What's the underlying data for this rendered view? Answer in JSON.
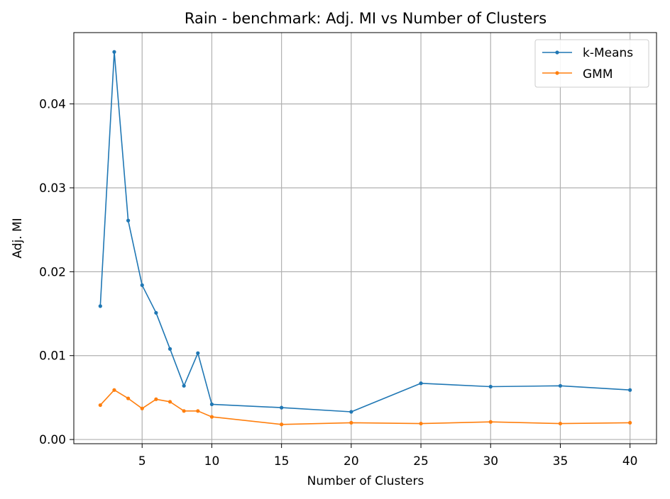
{
  "chart_data": {
    "type": "line",
    "title": "Rain - benchmark: Adj. MI vs Number of Clusters",
    "xlabel": "Number of Clusters",
    "ylabel": "Adj. MI",
    "xlim": [
      0.1,
      41.9
    ],
    "ylim": [
      -0.0005,
      0.0485
    ],
    "xticks": [
      5,
      10,
      15,
      20,
      25,
      30,
      35,
      40
    ],
    "yticks": [
      0.0,
      0.01,
      0.02,
      0.03,
      0.04
    ],
    "ytick_labels": [
      "0.00",
      "0.01",
      "0.02",
      "0.03",
      "0.04"
    ],
    "grid": true,
    "legend_position": "top-right",
    "x": [
      2,
      3,
      4,
      5,
      6,
      7,
      8,
      9,
      10,
      15,
      20,
      25,
      30,
      35,
      40
    ],
    "series": [
      {
        "name": "k-Means",
        "color": "#1f77b4",
        "values": [
          0.0159,
          0.0462,
          0.0261,
          0.0184,
          0.0151,
          0.0108,
          0.0064,
          0.0103,
          0.0042,
          0.0038,
          0.0033,
          0.0067,
          0.0063,
          0.0064,
          0.0059
        ]
      },
      {
        "name": "GMM",
        "color": "#ff7f0e",
        "values": [
          0.0041,
          0.0059,
          0.0049,
          0.0037,
          0.0048,
          0.0045,
          0.0034,
          0.0034,
          0.0027,
          0.0018,
          0.002,
          0.0019,
          0.0021,
          0.0019,
          0.002
        ]
      }
    ]
  }
}
